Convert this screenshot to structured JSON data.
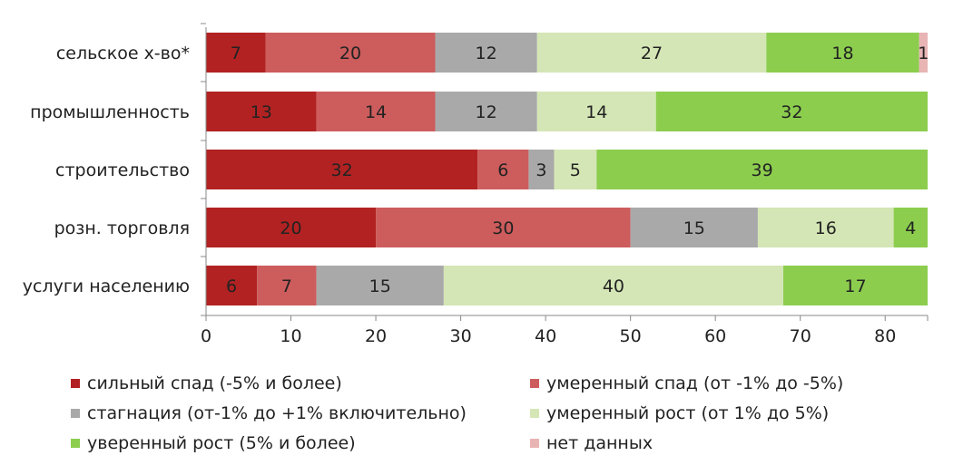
{
  "chart_data": {
    "type": "bar",
    "orientation": "horizontal",
    "stacked": true,
    "categories": [
      "сельское х-во*",
      "промышленность",
      "строительство",
      "розн. торговля",
      "услуги населению"
    ],
    "series": [
      {
        "name": "сильный спад (-5% и более)",
        "color": "#b22222",
        "values": [
          7,
          13,
          32,
          20,
          6
        ]
      },
      {
        "name": "умеренный спад (от -1% до -5%)",
        "color": "#cd5c5c",
        "values": [
          20,
          14,
          6,
          30,
          7
        ]
      },
      {
        "name": "стагнация (от-1% до +1% включительно)",
        "color": "#a9a9a9",
        "values": [
          12,
          12,
          3,
          15,
          15
        ]
      },
      {
        "name": "умеренный рост (от 1% до 5%)",
        "color": "#d4e6b5",
        "values": [
          27,
          14,
          5,
          16,
          40
        ]
      },
      {
        "name": "уверенный рост (5% и более)",
        "color": "#8ccd4e",
        "values": [
          18,
          32,
          39,
          4,
          17
        ]
      },
      {
        "name": "нет данных",
        "color": "#e8b4b4",
        "values": [
          1,
          0,
          0,
          0,
          0
        ]
      }
    ],
    "xlim": [
      0,
      85
    ],
    "xticks": [
      0,
      10,
      20,
      30,
      40,
      50,
      60,
      70,
      80
    ],
    "grid": false,
    "legend_position": "bottom"
  }
}
